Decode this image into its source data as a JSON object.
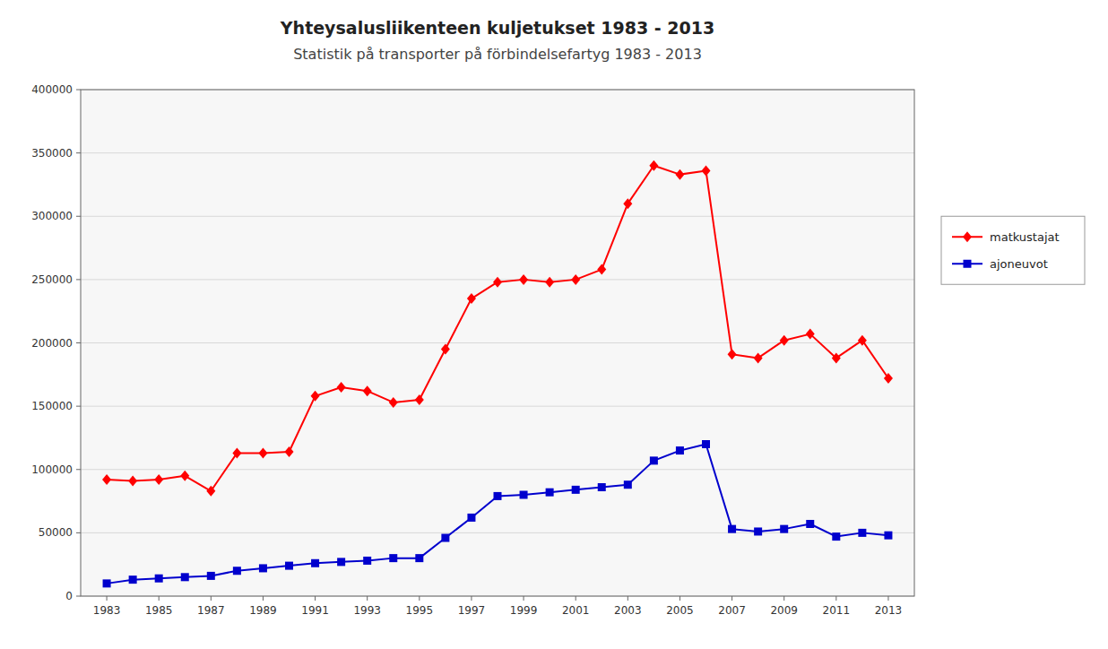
{
  "chart_data": {
    "type": "line",
    "title": "Yhteysalusliikenteen kuljetukset 1983 - 2013",
    "subtitle": "Statistik på transporter på förbindelsefartyg 1983 - 2013",
    "x": [
      1983,
      1984,
      1985,
      1986,
      1987,
      1988,
      1989,
      1990,
      1991,
      1992,
      1993,
      1994,
      1995,
      1996,
      1997,
      1998,
      1999,
      2000,
      2001,
      2002,
      2003,
      2004,
      2005,
      2006,
      2007,
      2008,
      2009,
      2010,
      2011,
      2012,
      2013
    ],
    "series": [
      {
        "name": "matkustajat",
        "color": "#ff0000",
        "marker": "diamond",
        "values": [
          92000,
          91000,
          92000,
          95000,
          83000,
          113000,
          113000,
          114000,
          158000,
          165000,
          162000,
          153000,
          155000,
          195000,
          235000,
          248000,
          250000,
          248000,
          250000,
          258000,
          310000,
          340000,
          333000,
          336000,
          191000,
          188000,
          202000,
          207000,
          188000,
          202000,
          172000
        ]
      },
      {
        "name": "ajoneuvot",
        "color": "#0000cd",
        "marker": "square",
        "values": [
          10000,
          13000,
          14000,
          15000,
          16000,
          20000,
          22000,
          24000,
          26000,
          27000,
          28000,
          30000,
          30000,
          46000,
          62000,
          79000,
          80000,
          82000,
          84000,
          86000,
          88000,
          107000,
          115000,
          120000,
          53000,
          51000,
          53000,
          57000,
          47000,
          50000,
          48000
        ]
      }
    ],
    "xlim": [
      1982,
      2014
    ],
    "xticks": [
      1983,
      1985,
      1987,
      1989,
      1991,
      1993,
      1995,
      1997,
      1999,
      2001,
      2003,
      2005,
      2007,
      2009,
      2011,
      2013
    ],
    "ylim": [
      0,
      400000
    ],
    "yticks": [
      0,
      50000,
      100000,
      150000,
      200000,
      250000,
      300000,
      350000,
      400000
    ],
    "grid": true,
    "legend": "right"
  }
}
